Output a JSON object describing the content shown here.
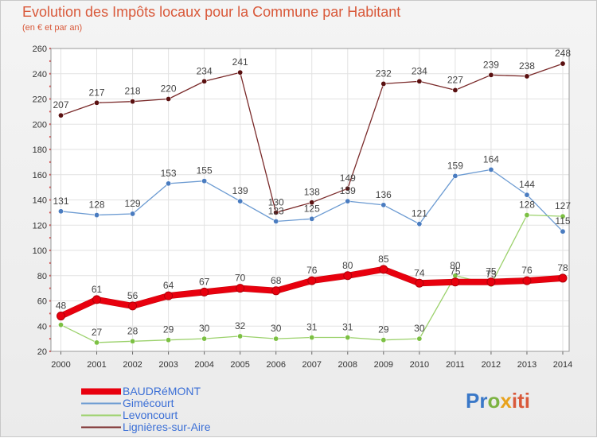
{
  "header": {
    "title": "Evolution des Impôts locaux pour la Commune par Habitant",
    "subtitle": "(en € et par an)"
  },
  "logo": {
    "p1": "Pr",
    "p2": "o",
    "p3": "x",
    "p4": "iti"
  },
  "chart_data": {
    "type": "line",
    "title": "Evolution des Impôts locaux pour la Commune par Habitant",
    "subtitle": "(en € et par an)",
    "xlabel": "",
    "ylabel": "",
    "ylim": [
      20,
      260
    ],
    "yticks": [
      20,
      40,
      60,
      80,
      100,
      120,
      140,
      160,
      180,
      200,
      220,
      240,
      260
    ],
    "grid": true,
    "legend_position": "bottom-left",
    "categories": [
      "2000",
      "2001",
      "2002",
      "2003",
      "2004",
      "2005",
      "2006",
      "2007",
      "2008",
      "2009",
      "2010",
      "2011",
      "2012",
      "2013",
      "2014"
    ],
    "series": [
      {
        "name": "BAUDRéMONT",
        "color": "#e8000e",
        "marker_color": "#e8000e",
        "width": 7,
        "label_color": "#444444",
        "values": [
          48,
          61,
          56,
          64,
          67,
          70,
          68,
          76,
          80,
          85,
          74,
          75,
          75,
          76,
          78
        ],
        "labels": [
          "48",
          "61",
          "56",
          "64",
          "67",
          "70",
          "68",
          "76",
          "80",
          "85",
          "74",
          "75",
          "75",
          "76",
          "78"
        ]
      },
      {
        "name": "Gimécourt",
        "color": "#6c9bd2",
        "marker_color": "#4a7cc0",
        "width": 1.3,
        "label_color": "#444444",
        "values": [
          131,
          128,
          129,
          153,
          155,
          139,
          123,
          125,
          139,
          136,
          121,
          159,
          164,
          144,
          115
        ],
        "labels": [
          "131",
          "128",
          "129",
          "153",
          "155",
          "139",
          "123",
          "125",
          "139",
          "136",
          "121",
          "159",
          "164",
          "144",
          "115"
        ]
      },
      {
        "name": "Levoncourt",
        "color": "#9bd16b",
        "marker_color": "#7cc043",
        "width": 1.3,
        "label_color": "#444444",
        "values": [
          41,
          27,
          28,
          29,
          30,
          32,
          30,
          31,
          31,
          29,
          30,
          80,
          73,
          128,
          127
        ],
        "labels": [
          "",
          "27",
          "28",
          "29",
          "30",
          "32",
          "30",
          "31",
          "31",
          "29",
          "30",
          "80",
          "73",
          "128",
          "127"
        ]
      },
      {
        "name": "Lignières-sur-Aire",
        "color": "#7a2a2a",
        "marker_color": "#5a1010",
        "width": 1.3,
        "label_color": "#444444",
        "values": [
          207,
          217,
          218,
          220,
          234,
          241,
          130,
          138,
          149,
          232,
          234,
          227,
          239,
          238,
          248
        ],
        "labels": [
          "207",
          "217",
          "218",
          "220",
          "234",
          "241",
          "130",
          "138",
          "149",
          "232",
          "234",
          "227",
          "239",
          "238",
          "248"
        ]
      }
    ]
  }
}
